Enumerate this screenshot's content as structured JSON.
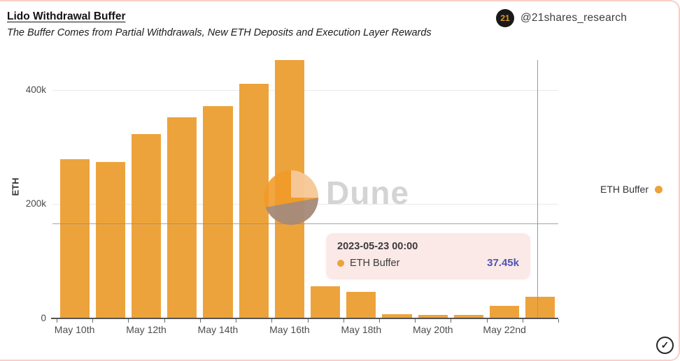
{
  "header": {
    "title": "Lido Withdrawal Buffer",
    "subtitle": "The Buffer Comes from Partial Withdrawals, New ETH Deposits and Execution Layer Rewards",
    "attribution": {
      "logo_text": "21",
      "handle": "@21shares_research"
    }
  },
  "chart_data": {
    "type": "bar",
    "title": "Lido Withdrawal Buffer",
    "xlabel": "",
    "ylabel": "ETH",
    "ylim": [
      0,
      452000
    ],
    "grid": "horizontal",
    "categories": [
      "May 10th",
      "May 11th",
      "May 12th",
      "May 13th",
      "May 14th",
      "May 15th",
      "May 16th",
      "May 17th",
      "May 18th",
      "May 19th",
      "May 20th",
      "May 21st",
      "May 22nd",
      "May 23rd"
    ],
    "series": [
      {
        "name": "ETH Buffer",
        "color": "#EDA33B",
        "values": [
          278000,
          274000,
          322000,
          352000,
          371000,
          411000,
          452000,
          56000,
          46000,
          7300,
          5700,
          6100,
          22000,
          37450
        ]
      }
    ],
    "x_tick_labels": [
      "May 10th",
      "May 12th",
      "May 14th",
      "May 16th",
      "May 18th",
      "May 20th",
      "May 22nd"
    ],
    "y_ticks": [
      {
        "value": 0,
        "label": "0"
      },
      {
        "value": 200000,
        "label": "200k"
      },
      {
        "value": 400000,
        "label": "400k"
      }
    ],
    "legend": {
      "position": "right",
      "entries": [
        {
          "label": "ETH Buffer",
          "color": "#EDA33B"
        }
      ]
    }
  },
  "tooltip": {
    "timestamp": "2023-05-23 00:00",
    "series_label": "ETH Buffer",
    "value": "37.45k",
    "bg_color": "#FBE9E7",
    "value_color": "#4F52B5",
    "marker_color": "#EDA33B"
  },
  "watermark": {
    "text": "Dune"
  },
  "icons": {
    "check_circle": "✓",
    "legend_dot": "●",
    "tooltip_dot": "●",
    "logo": "21shares-logo"
  },
  "colors": {
    "bar": "#EDA33B",
    "card_border": "#F7CFC8",
    "gridline": "#E9E9E9",
    "watermark_text": "#D4D4D4",
    "logo_bg": "#191919",
    "logo_text": "#DF9A2B"
  }
}
